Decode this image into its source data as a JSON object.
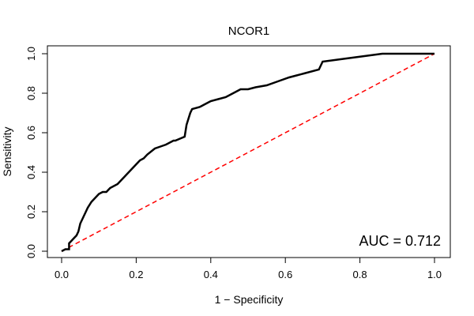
{
  "chart_data": {
    "type": "line",
    "title": "NCOR1",
    "xlabel": "1 − Specificity",
    "ylabel": "Sensitivity",
    "xlim": [
      0,
      1
    ],
    "ylim": [
      0,
      1
    ],
    "x_ticks": [
      0.0,
      0.2,
      0.4,
      0.6,
      0.8,
      1.0
    ],
    "y_ticks": [
      0.0,
      0.2,
      0.4,
      0.6,
      0.8,
      1.0
    ],
    "x_tick_labels": [
      "0.0",
      "0.2",
      "0.4",
      "0.6",
      "0.8",
      "1.0"
    ],
    "y_tick_labels": [
      "0.0",
      "0.2",
      "0.4",
      "0.6",
      "0.8",
      "1.0"
    ],
    "grid": false,
    "annotation": "AUC = 0.712",
    "colors": {
      "roc": "#000000",
      "reference": "#ff0000"
    },
    "series": [
      {
        "style": "solid",
        "x": [
          0.0,
          0.01,
          0.02,
          0.02,
          0.03,
          0.04,
          0.045,
          0.05,
          0.06,
          0.065,
          0.07,
          0.08,
          0.085,
          0.09,
          0.1,
          0.11,
          0.12,
          0.13,
          0.15,
          0.16,
          0.17,
          0.18,
          0.19,
          0.2,
          0.21,
          0.22,
          0.23,
          0.25,
          0.265,
          0.28,
          0.3,
          0.305,
          0.33,
          0.335,
          0.345,
          0.35,
          0.37,
          0.38,
          0.4,
          0.42,
          0.44,
          0.46,
          0.47,
          0.48,
          0.5,
          0.52,
          0.55,
          0.58,
          0.61,
          0.63,
          0.65,
          0.69,
          0.7,
          0.74,
          0.86,
          1.0
        ],
        "y": [
          0.0,
          0.01,
          0.01,
          0.04,
          0.06,
          0.08,
          0.1,
          0.14,
          0.18,
          0.2,
          0.22,
          0.25,
          0.26,
          0.27,
          0.29,
          0.3,
          0.3,
          0.32,
          0.34,
          0.36,
          0.38,
          0.4,
          0.42,
          0.44,
          0.46,
          0.47,
          0.49,
          0.52,
          0.53,
          0.54,
          0.56,
          0.56,
          0.58,
          0.64,
          0.7,
          0.72,
          0.73,
          0.74,
          0.76,
          0.77,
          0.78,
          0.8,
          0.81,
          0.82,
          0.82,
          0.83,
          0.84,
          0.86,
          0.88,
          0.89,
          0.9,
          0.92,
          0.96,
          0.97,
          1.0,
          1.0
        ]
      },
      {
        "style": "dashed",
        "x": [
          0,
          1
        ],
        "y": [
          0,
          1
        ]
      }
    ]
  }
}
